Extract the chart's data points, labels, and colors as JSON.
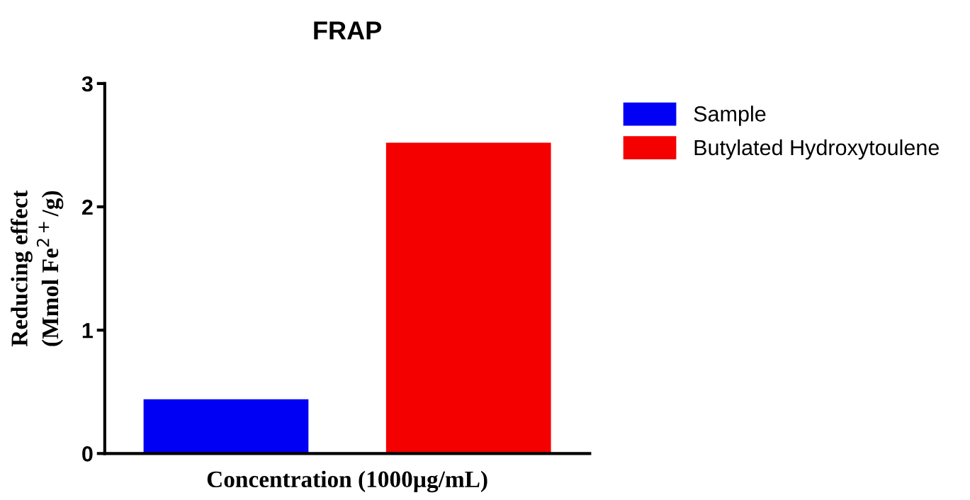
{
  "chart_data": {
    "type": "bar",
    "title": "FRAP",
    "xlabel": "Concentration (1000µg/mL)",
    "ylabel": "Reducing effect\n(Mmol Fe$^{2+}$/g)",
    "categories": [
      null,
      null
    ],
    "series": [
      {
        "name": "Sample",
        "color": "#0000f5",
        "values": [
          0.44,
          null
        ]
      },
      {
        "name": "Butylated Hydroxytoulene",
        "color": "#f50000",
        "values": [
          null,
          2.52
        ]
      }
    ],
    "ylim": [
      0,
      3
    ],
    "yticks": [
      0,
      1,
      2,
      3
    ],
    "grid": false,
    "legend": "top right"
  }
}
